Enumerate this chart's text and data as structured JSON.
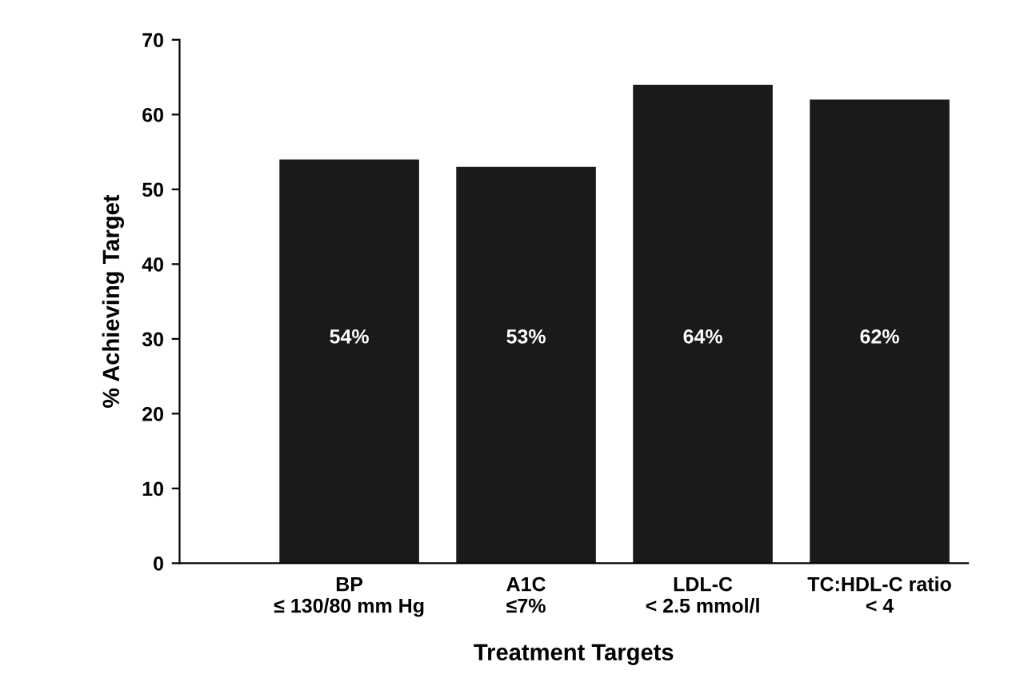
{
  "chart_data": {
    "type": "bar",
    "xlabel": "Treatment Targets",
    "ylabel": "% Achieving Target",
    "categories": [
      "BP\n≤ 130/80 mm Hg",
      "A1C\n≤7%",
      "LDL-C\n< 2.5 mmol/l",
      "TC:HDL-C ratio\n< 4"
    ],
    "values": [
      54,
      53,
      64,
      62
    ],
    "color": "#1a1a1a",
    "value_labels": [
      "54%",
      "53%",
      "64%",
      "62%"
    ],
    "ylim": [
      0,
      70
    ],
    "yticks": [
      0,
      10,
      20,
      30,
      40,
      50,
      60,
      70
    ],
    "grid": false
  }
}
